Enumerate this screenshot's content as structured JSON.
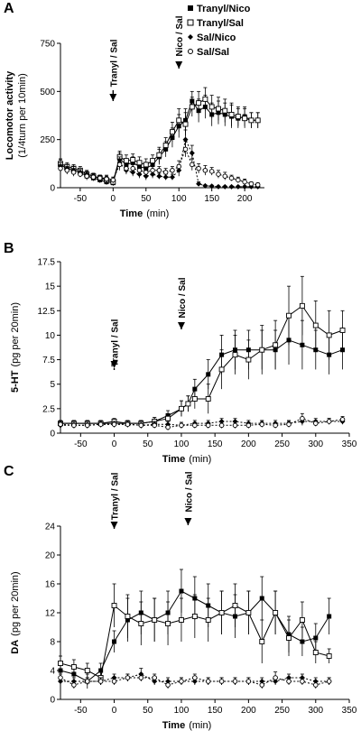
{
  "chart_data": [
    {
      "type": "line",
      "panel": "A",
      "ylabel": "Locomotor activity",
      "ylabel_unit": "(1/4turn per 10min)",
      "xlabel": "Time",
      "xlabel_unit": "(min)",
      "xlim": [
        -80,
        230
      ],
      "ylim": [
        0,
        750
      ],
      "xticks": [
        -50,
        0,
        50,
        100,
        150,
        200
      ],
      "yticks": [
        0,
        250,
        500,
        750
      ],
      "annotations": [
        {
          "text": "Tranyl / Sal",
          "x": 0
        },
        {
          "text": "Nico / Sal",
          "x": 100
        }
      ],
      "legend": [
        "Tranyl/Nico",
        "Tranyl/Sal",
        "Sal/Nico",
        "Sal/Sal"
      ],
      "series": [
        {
          "name": "Tranyl/Nico",
          "marker": "square-filled",
          "line": "solid",
          "x": [
            -80,
            -70,
            -60,
            -50,
            -40,
            -30,
            -20,
            -10,
            0,
            10,
            20,
            30,
            40,
            50,
            60,
            70,
            80,
            90,
            100,
            110,
            120,
            130,
            140,
            150,
            160,
            170,
            180,
            190,
            200,
            210,
            220
          ],
          "y": [
            120,
            100,
            90,
            80,
            60,
            50,
            40,
            30,
            25,
            150,
            120,
            130,
            110,
            100,
            120,
            160,
            200,
            260,
            320,
            350,
            450,
            400,
            420,
            380,
            390,
            380,
            370,
            360,
            370,
            350,
            350
          ],
          "err": [
            25,
            20,
            20,
            20,
            20,
            15,
            15,
            15,
            15,
            30,
            30,
            30,
            30,
            30,
            30,
            40,
            40,
            50,
            60,
            60,
            50,
            60,
            60,
            60,
            60,
            60,
            60,
            50,
            50,
            40,
            40
          ]
        },
        {
          "name": "Tranyl/Sal",
          "marker": "square-open",
          "line": "solid",
          "x": [
            -80,
            -70,
            -60,
            -50,
            -40,
            -30,
            -20,
            -10,
            0,
            10,
            20,
            30,
            40,
            50,
            60,
            70,
            80,
            90,
            100,
            110,
            120,
            130,
            140,
            150,
            160,
            170,
            180,
            190,
            200,
            210,
            220
          ],
          "y": [
            125,
            110,
            100,
            90,
            70,
            60,
            50,
            40,
            30,
            160,
            140,
            145,
            130,
            120,
            140,
            170,
            220,
            290,
            350,
            330,
            420,
            440,
            460,
            420,
            410,
            400,
            380,
            370,
            360,
            350,
            350
          ],
          "err": [
            25,
            20,
            20,
            20,
            20,
            15,
            15,
            15,
            15,
            30,
            30,
            30,
            30,
            30,
            30,
            40,
            40,
            50,
            60,
            60,
            50,
            60,
            60,
            60,
            60,
            60,
            60,
            50,
            50,
            40,
            40
          ]
        },
        {
          "name": "Sal/Nico",
          "marker": "diamond-filled",
          "line": "dotted",
          "x": [
            -80,
            -70,
            -60,
            -50,
            -40,
            -30,
            -20,
            -10,
            0,
            10,
            20,
            30,
            40,
            50,
            60,
            70,
            80,
            90,
            100,
            110,
            120,
            130,
            140,
            150,
            160,
            170,
            180,
            190,
            200,
            210,
            220
          ],
          "y": [
            110,
            100,
            90,
            80,
            70,
            60,
            50,
            50,
            40,
            130,
            90,
            80,
            70,
            60,
            70,
            60,
            55,
            55,
            90,
            250,
            180,
            20,
            10,
            8,
            5,
            5,
            5,
            5,
            5,
            5,
            5
          ],
          "err": [
            20,
            20,
            20,
            15,
            15,
            15,
            15,
            15,
            15,
            30,
            20,
            20,
            20,
            20,
            20,
            15,
            15,
            15,
            30,
            50,
            40,
            10,
            5,
            5,
            5,
            5,
            5,
            5,
            5,
            5,
            5
          ]
        },
        {
          "name": "Sal/Sal",
          "marker": "circle-open",
          "line": "dotted",
          "x": [
            -80,
            -70,
            -60,
            -50,
            -40,
            -30,
            -20,
            -10,
            0,
            10,
            20,
            30,
            40,
            50,
            60,
            70,
            80,
            90,
            100,
            110,
            120,
            130,
            140,
            150,
            160,
            170,
            180,
            190,
            200,
            210,
            220
          ],
          "y": [
            100,
            90,
            80,
            70,
            60,
            55,
            50,
            45,
            40,
            120,
            100,
            100,
            90,
            80,
            90,
            90,
            80,
            90,
            110,
            200,
            120,
            100,
            90,
            85,
            70,
            60,
            50,
            40,
            30,
            20,
            15
          ],
          "err": [
            20,
            20,
            20,
            15,
            15,
            15,
            15,
            15,
            15,
            30,
            20,
            20,
            20,
            20,
            20,
            20,
            20,
            20,
            30,
            40,
            30,
            25,
            25,
            20,
            20,
            20,
            15,
            15,
            15,
            10,
            10
          ]
        }
      ]
    },
    {
      "type": "line",
      "panel": "B",
      "ylabel": "5-HT",
      "ylabel_unit": "(pg per 20min)",
      "xlabel": "Time",
      "xlabel_unit": "(min)",
      "xlim": [
        -80,
        350
      ],
      "ylim": [
        0,
        17.5
      ],
      "xticks": [
        -50,
        0,
        50,
        100,
        150,
        200,
        250,
        300,
        350
      ],
      "yticks": [
        0,
        2.5,
        5,
        7.5,
        10,
        12.5,
        15,
        17.5
      ],
      "annotations": [
        {
          "text": "Tranyl / Sal",
          "x": 0
        },
        {
          "text": "Nico / Sal",
          "x": 100
        }
      ],
      "series": [
        {
          "name": "Tranyl/Nico",
          "marker": "square-filled",
          "line": "solid",
          "x": [
            -80,
            -60,
            -40,
            -20,
            0,
            20,
            40,
            60,
            80,
            100,
            110,
            120,
            140,
            160,
            180,
            200,
            220,
            240,
            260,
            280,
            300,
            320,
            340
          ],
          "y": [
            1.0,
            1.0,
            1.0,
            1.0,
            1.0,
            1.0,
            1.0,
            1.2,
            1.8,
            2.5,
            3.0,
            4.5,
            6.0,
            8.0,
            8.5,
            8.5,
            8.5,
            8.5,
            9.5,
            9.0,
            8.5,
            8.0,
            8.5
          ],
          "err": [
            0.3,
            0.3,
            0.3,
            0.3,
            0.3,
            0.3,
            0.3,
            0.4,
            0.5,
            0.8,
            0.8,
            1.0,
            1.5,
            2.0,
            2.0,
            2.0,
            2.0,
            2.0,
            2.5,
            2.5,
            2.0,
            2.0,
            2.0
          ]
        },
        {
          "name": "Tranyl/Sal",
          "marker": "square-open",
          "line": "solid",
          "x": [
            -80,
            -60,
            -40,
            -20,
            0,
            20,
            40,
            60,
            80,
            100,
            110,
            120,
            140,
            160,
            180,
            200,
            220,
            240,
            260,
            280,
            300,
            320,
            340
          ],
          "y": [
            1.0,
            1.0,
            1.0,
            1.0,
            1.2,
            1.0,
            1.0,
            1.2,
            1.5,
            2.5,
            3.0,
            3.5,
            3.5,
            6.5,
            8.0,
            7.5,
            8.5,
            9.0,
            12.0,
            13.0,
            11.0,
            10.0,
            10.5
          ],
          "err": [
            0.3,
            0.3,
            0.3,
            0.3,
            0.3,
            0.3,
            0.3,
            0.4,
            0.5,
            0.8,
            0.8,
            1.0,
            1.5,
            2.0,
            2.0,
            2.0,
            2.5,
            2.5,
            3.0,
            3.0,
            2.5,
            2.5,
            2.0
          ]
        },
        {
          "name": "Sal/Nico",
          "marker": "diamond-filled",
          "line": "dotted",
          "x": [
            -80,
            -60,
            -40,
            -20,
            0,
            20,
            40,
            60,
            80,
            100,
            120,
            140,
            160,
            180,
            200,
            220,
            240,
            260,
            280,
            300,
            320,
            340
          ],
          "y": [
            0.8,
            0.8,
            0.8,
            0.9,
            0.9,
            0.9,
            0.8,
            0.9,
            0.9,
            0.8,
            1.0,
            1.0,
            1.2,
            1.2,
            1.0,
            1.0,
            1.0,
            1.0,
            1.2,
            1.2,
            1.2,
            1.2
          ],
          "err": [
            0.3,
            0.3,
            0.3,
            0.3,
            0.3,
            0.3,
            0.3,
            0.3,
            0.3,
            0.3,
            0.3,
            0.3,
            0.3,
            0.3,
            0.3,
            0.3,
            0.3,
            0.3,
            0.4,
            0.3,
            0.3,
            0.3
          ]
        },
        {
          "name": "Sal/Sal",
          "marker": "circle-open",
          "line": "dotted",
          "x": [
            -80,
            -60,
            -40,
            -20,
            0,
            20,
            40,
            60,
            80,
            100,
            120,
            140,
            160,
            180,
            200,
            220,
            240,
            260,
            280,
            300,
            320,
            340
          ],
          "y": [
            0.9,
            0.8,
            0.8,
            0.9,
            0.9,
            0.9,
            0.8,
            0.8,
            0.6,
            0.8,
            0.8,
            0.8,
            0.8,
            0.8,
            0.8,
            0.9,
            0.8,
            0.9,
            1.5,
            1.0,
            1.2,
            1.4
          ],
          "err": [
            0.3,
            0.3,
            0.3,
            0.3,
            0.3,
            0.3,
            0.3,
            0.3,
            0.3,
            0.3,
            0.3,
            0.3,
            0.3,
            0.3,
            0.3,
            0.3,
            0.3,
            0.3,
            0.5,
            0.3,
            0.3,
            0.3
          ]
        }
      ]
    },
    {
      "type": "line",
      "panel": "C",
      "ylabel": "DA",
      "ylabel_unit": "(pg per 20min)",
      "xlabel": "Time",
      "xlabel_unit": "(min)",
      "xlim": [
        -80,
        350
      ],
      "ylim": [
        0,
        24
      ],
      "xticks": [
        -50,
        0,
        50,
        100,
        150,
        200,
        250,
        300,
        350
      ],
      "yticks": [
        0,
        4,
        8,
        12,
        16,
        20,
        24
      ],
      "annotations": [
        {
          "text": "Tranyl / Sal",
          "x": 0
        },
        {
          "text": "Nico / Sal",
          "x": 110
        }
      ],
      "series": [
        {
          "name": "Tranyl/Nico",
          "marker": "square-filled",
          "line": "solid",
          "x": [
            -80,
            -60,
            -40,
            -20,
            0,
            20,
            40,
            60,
            80,
            100,
            120,
            140,
            160,
            180,
            200,
            220,
            240,
            260,
            280,
            300,
            320
          ],
          "y": [
            4.0,
            3.5,
            2.5,
            4.0,
            8.0,
            11.0,
            12.0,
            11.0,
            12.0,
            15.0,
            14.0,
            13.0,
            12.0,
            11.5,
            12.0,
            14.0,
            12.0,
            9.0,
            8.0,
            8.5,
            11.5
          ],
          "err": [
            1.0,
            1.0,
            1.0,
            1.0,
            1.5,
            3.0,
            3.0,
            3.0,
            3.0,
            3.0,
            3.0,
            3.0,
            3.0,
            3.0,
            3.0,
            3.0,
            3.0,
            2.5,
            2.0,
            2.0,
            2.5
          ]
        },
        {
          "name": "Tranyl/Sal",
          "marker": "square-open",
          "line": "solid",
          "x": [
            -80,
            -60,
            -40,
            -20,
            0,
            20,
            40,
            60,
            80,
            100,
            120,
            140,
            160,
            180,
            200,
            220,
            240,
            260,
            280,
            300,
            320
          ],
          "y": [
            5.0,
            4.5,
            4.0,
            3.0,
            13.0,
            11.5,
            10.5,
            11.0,
            10.5,
            11.0,
            11.5,
            11.0,
            12.0,
            13.0,
            12.0,
            8.0,
            12.0,
            8.5,
            11.0,
            6.5,
            6.0
          ],
          "err": [
            1.0,
            1.0,
            1.0,
            1.0,
            3.0,
            3.0,
            3.0,
            3.0,
            3.0,
            3.0,
            3.0,
            3.0,
            3.0,
            3.0,
            3.0,
            3.0,
            3.0,
            2.5,
            2.5,
            1.5,
            1.0
          ]
        },
        {
          "name": "Sal/Nico",
          "marker": "diamond-filled",
          "line": "dotted",
          "x": [
            -80,
            -60,
            -40,
            -20,
            0,
            20,
            40,
            60,
            80,
            100,
            120,
            140,
            160,
            180,
            200,
            220,
            240,
            260,
            280,
            300,
            320
          ],
          "y": [
            2.5,
            2.5,
            2.5,
            2.5,
            3.0,
            3.0,
            3.5,
            2.5,
            2.5,
            2.5,
            2.5,
            2.5,
            2.5,
            2.5,
            2.5,
            2.5,
            2.5,
            3.0,
            3.0,
            2.5,
            2.5
          ],
          "err": [
            0.5,
            0.5,
            0.5,
            0.5,
            0.5,
            0.5,
            0.8,
            0.5,
            0.5,
            0.5,
            0.5,
            0.5,
            0.5,
            0.5,
            0.5,
            0.5,
            0.5,
            0.5,
            0.5,
            0.5,
            0.5
          ]
        },
        {
          "name": "Sal/Sal",
          "marker": "circle-open",
          "line": "dotted",
          "x": [
            -80,
            -60,
            -40,
            -20,
            0,
            20,
            40,
            60,
            80,
            100,
            120,
            140,
            160,
            180,
            200,
            220,
            240,
            260,
            280,
            300,
            320
          ],
          "y": [
            3.0,
            2.0,
            2.5,
            2.5,
            2.5,
            3.0,
            3.0,
            3.0,
            2.0,
            2.5,
            3.0,
            2.5,
            2.5,
            2.5,
            2.5,
            2.0,
            3.0,
            2.5,
            2.5,
            2.0,
            2.5
          ],
          "err": [
            0.5,
            0.5,
            0.5,
            0.5,
            0.5,
            0.5,
            0.5,
            0.5,
            0.5,
            0.5,
            0.5,
            0.5,
            0.5,
            0.5,
            0.5,
            0.5,
            0.8,
            0.5,
            0.5,
            0.5,
            0.5
          ]
        }
      ]
    }
  ]
}
